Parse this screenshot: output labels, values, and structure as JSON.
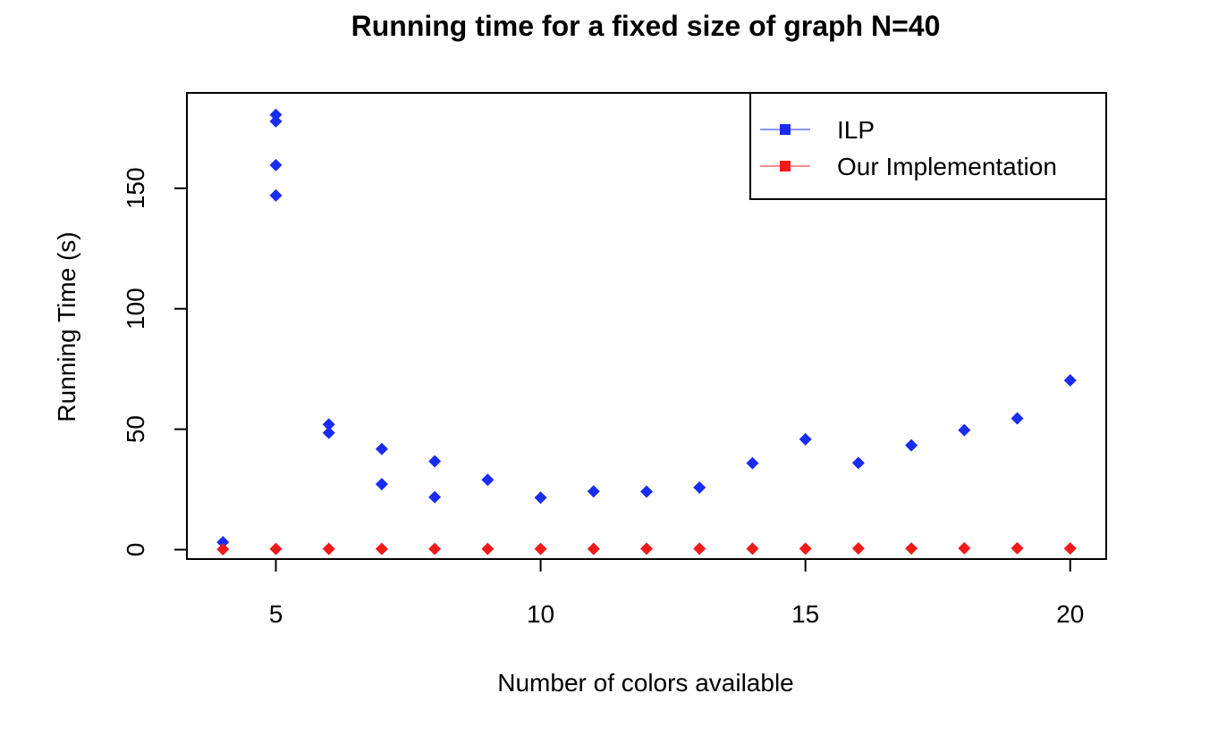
{
  "chart_data": {
    "type": "scatter",
    "title": "Running time for a fixed size of graph N=40",
    "xlabel": "Number of colors available",
    "ylabel": "Running Time (s)",
    "xlim": [
      3.32,
      20.68
    ],
    "ylim": [
      -3.9,
      189.6
    ],
    "xticks": [
      5,
      10,
      15,
      20
    ],
    "yticks": [
      0,
      50,
      100,
      150
    ],
    "grid": false,
    "legend_position": "top-right",
    "series": [
      {
        "name": "ILP",
        "color": "#1a2cf0",
        "x": [
          4,
          5,
          5,
          5,
          5,
          6,
          6,
          7,
          7,
          8,
          8,
          9,
          10,
          11,
          12,
          13,
          14,
          15,
          16,
          17,
          18,
          19,
          20
        ],
        "y": [
          3.1,
          180.5,
          177.8,
          159.6,
          147.0,
          52.0,
          48.5,
          41.8,
          27.2,
          36.7,
          21.8,
          29.0,
          21.6,
          24.2,
          24.1,
          25.8,
          35.9,
          45.8,
          36.0,
          43.3,
          49.6,
          54.5,
          70.3
        ]
      },
      {
        "name": "Our Implementation",
        "color": "#f01a1a",
        "x": [
          4,
          5,
          6,
          7,
          8,
          9,
          10,
          11,
          12,
          13,
          14,
          15,
          16,
          17,
          18,
          19,
          20
        ],
        "y": [
          0.2,
          0.3,
          0.3,
          0.3,
          0.3,
          0.3,
          0.3,
          0.3,
          0.4,
          0.4,
          0.4,
          0.4,
          0.5,
          0.5,
          0.6,
          0.6,
          0.5
        ]
      }
    ]
  }
}
